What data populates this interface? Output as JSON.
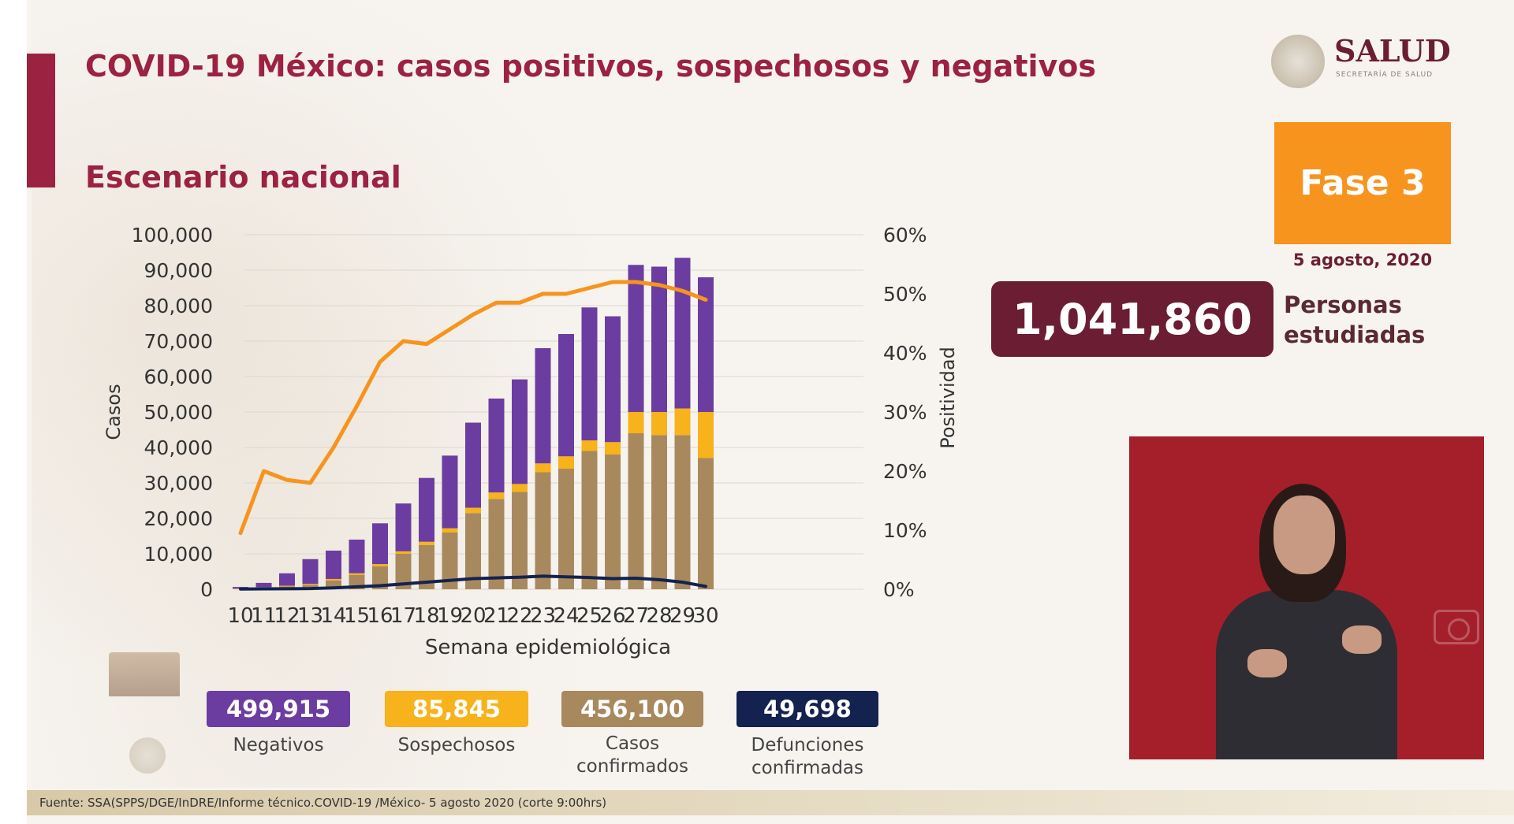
{
  "header": {
    "title": "COVID-19 México: casos positivos, sospechosos y negativos",
    "subtitle": "Escenario nacional"
  },
  "logo": {
    "name": "SALUD",
    "sub": "SECRETARÍA DE SALUD"
  },
  "phase": {
    "label": "Fase 3",
    "date": "5 agosto, 2020"
  },
  "total": {
    "value": "1,041,860",
    "label": "Personas estudiadas"
  },
  "colors": {
    "title": "#9b2240",
    "negativos": "#6c3da0",
    "sospechosos": "#f7b21c",
    "confirmados": "#a8895e",
    "defunciones": "#13224f",
    "positividad": "#f7941e"
  },
  "chart_data": {
    "type": "bar",
    "stacked": true,
    "xlabel": "Semana epidemiológica",
    "ylabel": "Casos",
    "y2label": "Positividad",
    "ylim": [
      0,
      100000
    ],
    "y2lim": [
      0,
      60
    ],
    "yticks": [
      "0",
      "10,000",
      "20,000",
      "30,000",
      "40,000",
      "50,000",
      "60,000",
      "70,000",
      "80,000",
      "90,000",
      "100,000"
    ],
    "y2ticks": [
      "0%",
      "10%",
      "20%",
      "30%",
      "40%",
      "50%",
      "60%"
    ],
    "categories": [
      "10",
      "11",
      "12",
      "13",
      "14",
      "15",
      "16",
      "17",
      "18",
      "19",
      "20",
      "21",
      "22",
      "23",
      "24",
      "25",
      "26",
      "27",
      "28",
      "29",
      "30"
    ],
    "series": [
      {
        "name": "Casos confirmados",
        "type": "bar",
        "color": "#a8895e",
        "values": [
          200,
          500,
          800,
          1200,
          2500,
          4000,
          6500,
          10000,
          12500,
          16000,
          21500,
          25500,
          27500,
          33000,
          34000,
          39000,
          38000,
          44000,
          43500,
          43500,
          37000
        ]
      },
      {
        "name": "Sospechosos",
        "type": "bar",
        "color": "#f7b21c",
        "values": [
          50,
          100,
          200,
          300,
          400,
          500,
          600,
          700,
          900,
          1200,
          1500,
          1800,
          2200,
          2500,
          3500,
          3000,
          3500,
          6000,
          6500,
          7500,
          13000
        ]
      },
      {
        "name": "Negativos",
        "type": "bar",
        "color": "#6c3da0",
        "values": [
          400,
          1200,
          3500,
          7000,
          8000,
          9500,
          11500,
          13500,
          18000,
          20500,
          24000,
          26500,
          29500,
          32500,
          34500,
          37500,
          35500,
          41500,
          41000,
          42500,
          38000
        ]
      },
      {
        "name": "Positividad",
        "type": "line",
        "axis": "y2",
        "color": "#f7941e",
        "values": [
          9.5,
          20,
          18.5,
          18,
          24,
          31,
          38.5,
          42,
          41.5,
          44,
          46.5,
          48.5,
          48.5,
          50,
          50,
          51,
          52,
          52,
          51.5,
          50.5,
          49
        ]
      },
      {
        "name": "Defunciones",
        "type": "line",
        "axis": "y",
        "color": "#13224f",
        "values": [
          50,
          100,
          150,
          200,
          400,
          700,
          1000,
          1500,
          2000,
          2500,
          3000,
          3200,
          3400,
          3700,
          3500,
          3300,
          3000,
          3100,
          2700,
          2000,
          800
        ]
      }
    ]
  },
  "legend": [
    {
      "value": "499,915",
      "label": "Negativos",
      "color": "#6c3da0"
    },
    {
      "value": "85,845",
      "label": "Sospechosos",
      "color": "#f7b21c"
    },
    {
      "value": "456,100",
      "label": "Casos confirmados",
      "color": "#a8895e"
    },
    {
      "value": "49,698",
      "label": "Defunciones confirmadas",
      "color": "#13224f"
    }
  ],
  "footer": {
    "source": "Fuente: SSA(SPPS/DGE/InDRE/Informe técnico.COVID-19 /México- 5 agosto 2020 (corte 9:00hrs)"
  }
}
